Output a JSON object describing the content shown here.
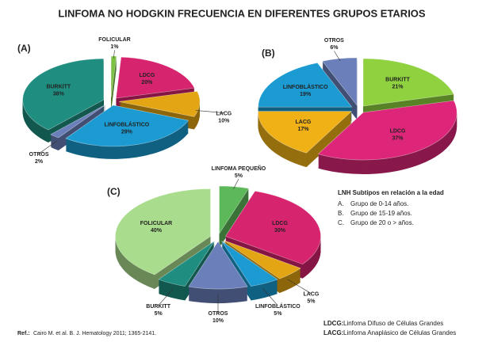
{
  "title": "LINFOMA NO HODGKIN FRECUENCIA EN DIFERENTES GRUPOS ETARIOS",
  "chart_data": [
    {
      "type": "pie",
      "title": "(A)",
      "categories": [
        "FOLICULAR",
        "LDCG",
        "LACG",
        "LINFOBLÁSTICO",
        "OTROS",
        "BURKITT"
      ],
      "values": [
        1,
        20,
        10,
        29,
        2,
        38
      ],
      "value_labels": [
        "1%",
        "20%",
        "10%",
        "29%",
        "2%",
        "38%"
      ],
      "colors": [
        "#7cc242",
        "#d6246e",
        "#e3a514",
        "#1b9bd1",
        "#6b80bb",
        "#1f8e80"
      ]
    },
    {
      "type": "pie",
      "title": "(B)",
      "categories": [
        "BURKITT",
        "LDCG",
        "LACG",
        "LINFOBLÁSTICO",
        "OTROS"
      ],
      "values": [
        21,
        37,
        17,
        19,
        6
      ],
      "value_labels": [
        "21%",
        "37%",
        "17%",
        "19%",
        "6%"
      ],
      "colors": [
        "#8fd13f",
        "#dd2679",
        "#f0b116",
        "#1b9bd1",
        "#6b80bb"
      ]
    },
    {
      "type": "pie",
      "title": "(C)",
      "categories": [
        "LINFOMA PEQUEÑO",
        "LDCG",
        "LACG",
        "LINFOBLÁSTICO",
        "OTROS",
        "BURKITT",
        "FOLICULAR"
      ],
      "values": [
        5,
        30,
        5,
        5,
        10,
        5,
        40
      ],
      "value_labels": [
        "5%",
        "30%",
        "5%",
        "5%",
        "10%",
        "5%",
        "40%"
      ],
      "colors": [
        "#5db85a",
        "#d6246e",
        "#e3a514",
        "#1b9bd1",
        "#6b80bb",
        "#1f8e80",
        "#a9dc8c"
      ]
    }
  ],
  "legend_box": {
    "title": "LNH Subtipos en relación a la edad",
    "items": [
      {
        "marker": "A.",
        "text": "Grupo de 0-14 años."
      },
      {
        "marker": "B.",
        "text": "Grupo de 15-19 años."
      },
      {
        "marker": "C.",
        "text": "Grupo de  20 o > años."
      }
    ]
  },
  "reference": {
    "label": "Ref.:",
    "text": "Cairo M. et al. B. J. Hematology  2011;  1365-2141."
  },
  "abbreviations": [
    {
      "term": "LDCG:",
      "text": "Linfoma Difuso de Células Grandes"
    },
    {
      "term": "LACG:",
      "text": "Linfoma Anaplásico de Células Grandes"
    }
  ]
}
